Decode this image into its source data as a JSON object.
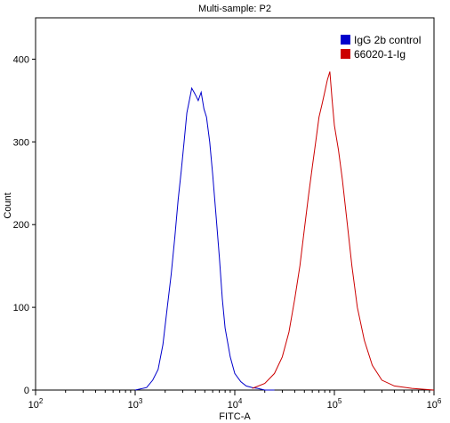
{
  "chart_data": {
    "type": "line",
    "title": "Multi-sample: P2",
    "xlabel": "FITC-A",
    "ylabel": "Count",
    "x_scale": "log",
    "xlim": [
      100,
      1000000
    ],
    "ylim": [
      0,
      450
    ],
    "x_ticks": [
      {
        "base": "10",
        "exp": "2",
        "value": 100
      },
      {
        "base": "10",
        "exp": "3",
        "value": 1000
      },
      {
        "base": "10",
        "exp": "4",
        "value": 10000
      },
      {
        "base": "10",
        "exp": "5",
        "value": 100000
      },
      {
        "base": "10",
        "exp": "6",
        "value": 1000000
      }
    ],
    "y_ticks": [
      "0",
      "100",
      "200",
      "300",
      "400"
    ],
    "grid": false,
    "legend_position": "top-right",
    "series": [
      {
        "name": "IgG 2b control",
        "color": "#0000cc",
        "x": [
          1000,
          1300,
          1500,
          1700,
          1900,
          2100,
          2300,
          2500,
          2700,
          2900,
          3100,
          3300,
          3500,
          3700,
          3900,
          4100,
          4300,
          4600,
          4900,
          5200,
          5600,
          6000,
          6500,
          7000,
          7500,
          8000,
          9000,
          10000,
          11500,
          13000,
          15000,
          17000,
          20000,
          25000
        ],
        "y": [
          0,
          3,
          12,
          25,
          55,
          100,
          140,
          185,
          230,
          265,
          300,
          335,
          350,
          365,
          360,
          355,
          350,
          360,
          340,
          330,
          300,
          260,
          210,
          160,
          110,
          75,
          40,
          20,
          10,
          5,
          3,
          2,
          0,
          0
        ]
      },
      {
        "name": "66020-1-Ig",
        "color": "#cc0000",
        "x": [
          15000,
          20000,
          25000,
          30000,
          35000,
          40000,
          45000,
          50000,
          55000,
          60000,
          65000,
          70000,
          75000,
          80000,
          85000,
          90000,
          95000,
          100000,
          110000,
          120000,
          135000,
          150000,
          170000,
          200000,
          240000,
          300000,
          400000,
          600000,
          1000000
        ],
        "y": [
          2,
          8,
          20,
          40,
          70,
          110,
          150,
          195,
          235,
          270,
          300,
          330,
          345,
          360,
          375,
          385,
          350,
          320,
          290,
          255,
          200,
          150,
          100,
          60,
          30,
          12,
          5,
          2,
          0
        ]
      }
    ]
  }
}
